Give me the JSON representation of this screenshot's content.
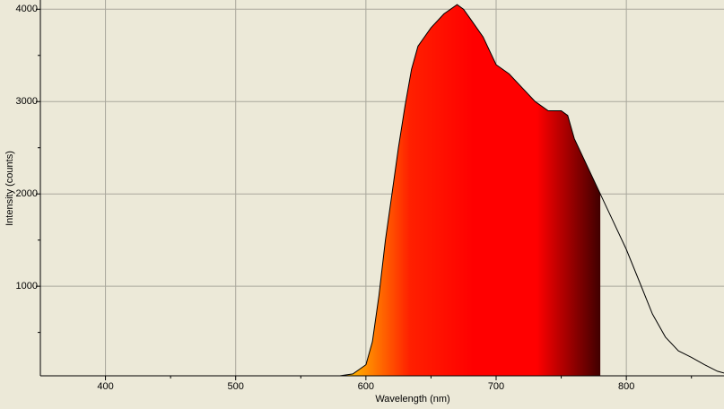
{
  "chart_data": {
    "type": "area",
    "x_label": "Wavelength (nm)",
    "y_label": "Intensity (counts)",
    "x": [
      350,
      400,
      450,
      500,
      550,
      580,
      590,
      600,
      605,
      610,
      615,
      620,
      625,
      630,
      635,
      640,
      650,
      660,
      670,
      675,
      680,
      690,
      695,
      700,
      710,
      720,
      730,
      740,
      750,
      755,
      760,
      770,
      780,
      790,
      800,
      810,
      820,
      830,
      840,
      850,
      860,
      870,
      875
    ],
    "values": [
      30,
      30,
      30,
      30,
      30,
      30,
      50,
      150,
      400,
      900,
      1500,
      2000,
      2500,
      2950,
      3350,
      3600,
      3800,
      3950,
      4050,
      4000,
      3900,
      3700,
      3550,
      3400,
      3300,
      3150,
      3000,
      2900,
      2900,
      2850,
      2600,
      2300,
      2000,
      1700,
      1400,
      1050,
      700,
      450,
      300,
      230,
      150,
      80,
      60
    ],
    "color": "#000000",
    "fill_xlim": [
      585,
      780
    ],
    "fill_colors": [
      "#ffc000",
      "#ff2000",
      "#ff0000",
      "#ff0000",
      "#400000"
    ],
    "xlim": [
      350,
      875
    ],
    "ylim": [
      30,
      4100
    ],
    "xticks": [
      400,
      500,
      600,
      700,
      800
    ],
    "yticks": [
      1000,
      2000,
      3000,
      4000
    ],
    "xticks_minor": [
      450,
      550,
      650,
      750,
      850
    ],
    "yticks_minor": [
      500,
      1500,
      2500,
      3500
    ],
    "grid": true
  }
}
